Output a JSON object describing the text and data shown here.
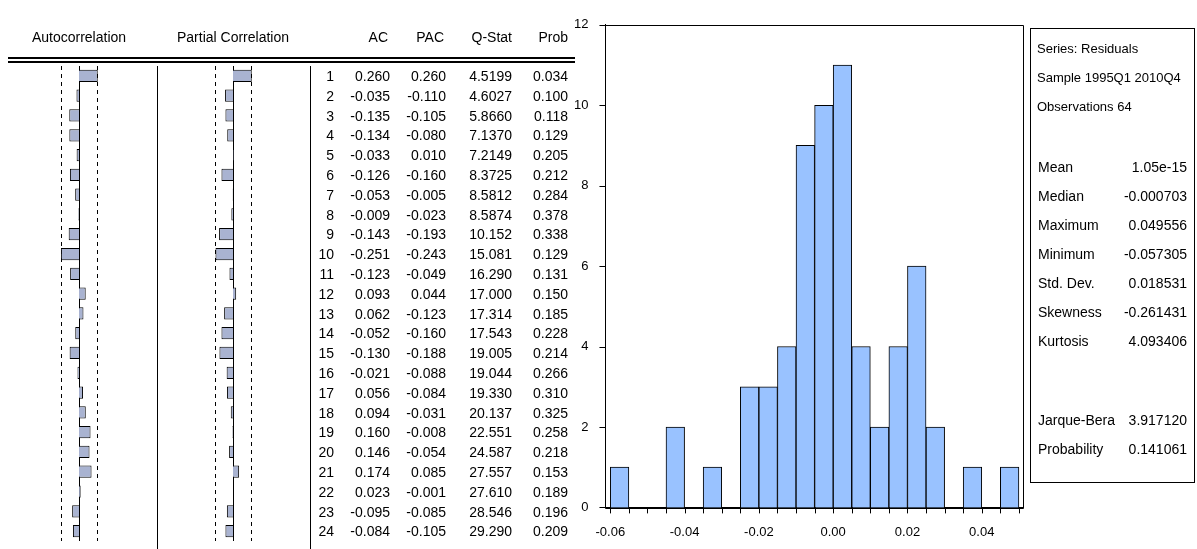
{
  "chart_data": [
    {
      "type": "bar",
      "orientation": "horizontal",
      "title": "Autocorrelation",
      "categories": [
        "1",
        "2",
        "3",
        "4",
        "5",
        "6",
        "7",
        "8",
        "9",
        "10",
        "11",
        "12",
        "13",
        "14",
        "15",
        "16",
        "17",
        "18",
        "19",
        "20",
        "21",
        "22",
        "23",
        "24"
      ],
      "series": [
        {
          "name": "AC",
          "color": "#a9b3d1",
          "values": [
            0.26,
            -0.035,
            -0.135,
            -0.134,
            -0.033,
            -0.126,
            -0.053,
            -0.009,
            -0.143,
            -0.251,
            -0.123,
            0.093,
            0.062,
            -0.052,
            -0.13,
            -0.021,
            0.056,
            0.094,
            0.16,
            0.146,
            0.174,
            0.023,
            -0.095,
            -0.084
          ],
          "value_labels": [
            "0.260",
            "-0.035",
            "-0.135",
            "-0.134",
            "-0.033",
            "-0.126",
            "-0.053",
            "-0.009",
            "-0.143",
            "-0.251",
            "-0.123",
            "0.093",
            "0.062",
            "-0.052",
            "-0.130",
            "-0.021",
            "0.056",
            "0.094",
            "0.160",
            "0.146",
            "0.174",
            "0.023",
            "-0.095",
            "-0.084"
          ]
        }
      ],
      "tick_labels": false,
      "legend": false,
      "grid": false,
      "ref_lines": [
        {
          "axis": "x",
          "value": -0.25,
          "line_style": "dashed",
          "color": "#000000"
        },
        {
          "axis": "x",
          "value": 0.25,
          "line_style": "dashed",
          "color": "#000000"
        }
      ]
    },
    {
      "type": "bar",
      "orientation": "horizontal",
      "title": "Partial Correlation",
      "categories": [
        null,
        null,
        null,
        null,
        null,
        null,
        null,
        null,
        null,
        null,
        null,
        null,
        null,
        null,
        null,
        null,
        null,
        null,
        null,
        null,
        null,
        null,
        null,
        null
      ],
      "series": [
        {
          "name": "PAC",
          "color": "#a9b3d1",
          "values": [
            0.26,
            -0.11,
            -0.105,
            -0.08,
            0.01,
            -0.16,
            -0.005,
            -0.023,
            -0.193,
            -0.243,
            -0.049,
            0.044,
            -0.123,
            -0.16,
            -0.188,
            -0.088,
            -0.084,
            -0.031,
            -0.008,
            -0.054,
            0.085,
            -0.001,
            -0.085,
            -0.105
          ],
          "value_labels": [
            "0.260",
            "-0.110",
            "-0.105",
            "-0.080",
            "0.010",
            "-0.160",
            "-0.005",
            "-0.023",
            "-0.193",
            "-0.243",
            "-0.049",
            "0.044",
            "-0.123",
            "-0.160",
            "-0.188",
            "-0.088",
            "-0.084",
            "-0.031",
            "-0.008",
            "-0.054",
            "0.085",
            "-0.001",
            "-0.085",
            "-0.105"
          ]
        }
      ],
      "tick_labels": false,
      "legend": false,
      "grid": false,
      "ref_lines": [
        {
          "axis": "x",
          "value": -0.25,
          "line_style": "dashed",
          "color": "#000000"
        },
        {
          "axis": "x",
          "value": 0.25,
          "line_style": "dashed",
          "color": "#000000"
        }
      ]
    },
    {
      "type": "other",
      "title": "Q-Stat",
      "annotations": [
        "4.5199",
        "4.6027",
        "5.8660",
        "7.1370",
        "7.2149",
        "8.3725",
        "8.5812",
        "8.5874",
        "10.152",
        "15.081",
        "16.290",
        "17.000",
        "17.314",
        "17.543",
        "19.005",
        "19.044",
        "19.330",
        "20.137",
        "22.551",
        "24.587",
        "27.557",
        "27.610",
        "28.546",
        "29.290"
      ]
    },
    {
      "type": "other",
      "title": "Prob",
      "annotations": [
        "0.034",
        "0.100",
        "0.118",
        "0.129",
        "0.205",
        "0.212",
        "0.284",
        "0.378",
        "0.338",
        "0.129",
        "0.131",
        "0.150",
        "0.185",
        "0.228",
        "0.214",
        "0.266",
        "0.310",
        "0.325",
        "0.258",
        "0.218",
        "0.153",
        "0.189",
        "0.196",
        "0.209"
      ]
    },
    {
      "type": "histogram",
      "bins": [
        -0.06,
        -0.055,
        -0.05,
        -0.045,
        -0.04,
        -0.035,
        -0.03,
        -0.025,
        -0.02,
        -0.015,
        -0.01,
        -0.005,
        0,
        0.005,
        0.01,
        0.015,
        0.02,
        0.025,
        0.03,
        0.035,
        0.04,
        0.045,
        0.05
      ],
      "values": [
        1,
        0,
        0,
        2,
        0,
        1,
        0,
        3,
        3,
        4,
        9,
        10,
        11,
        4,
        2,
        4,
        6,
        2,
        0,
        1,
        0,
        1
      ],
      "color": "#99c2ff",
      "xlim": [
        -0.0613,
        0.0511
      ],
      "ylim": [
        0,
        12
      ],
      "yticks": [
        0,
        2,
        4,
        6,
        8,
        10,
        12
      ],
      "xticks": [
        {
          "value": -0.06,
          "label": "-0.06"
        },
        {
          "value": -0.055,
          "label": null
        },
        {
          "value": -0.05,
          "label": null
        },
        {
          "value": -0.045,
          "label": null
        },
        {
          "value": -0.04,
          "label": "-0.04"
        },
        {
          "value": -0.035,
          "label": null
        },
        {
          "value": -0.03,
          "label": null
        },
        {
          "value": -0.025,
          "label": null
        },
        {
          "value": -0.02,
          "label": "-0.02"
        },
        {
          "value": -0.015,
          "label": null
        },
        {
          "value": -0.01,
          "label": null
        },
        {
          "value": -0.005,
          "label": null
        },
        {
          "value": 0,
          "label": "0.00"
        },
        {
          "value": 0.005,
          "label": null
        },
        {
          "value": 0.01,
          "label": null
        },
        {
          "value": 0.015,
          "label": null
        },
        {
          "value": 0.02,
          "label": "0.02"
        },
        {
          "value": 0.025,
          "label": null
        },
        {
          "value": 0.03,
          "label": null
        },
        {
          "value": 0.035,
          "label": null
        },
        {
          "value": 0.04,
          "label": "0.04"
        },
        {
          "value": 0.045,
          "label": null
        },
        {
          "value": 0.05,
          "label": null
        }
      ],
      "grid": false,
      "legend": false
    },
    {
      "type": "other",
      "annotations": [
        "Series: Residuals",
        "Sample 1995Q1 2010Q4",
        "Observations 64"
      ],
      "categories": [
        "Mean",
        "Median",
        "Maximum",
        "Minimum",
        "Std. Dev.",
        "Skewness",
        "Kurtosis",
        "Jarque-Bera",
        "Probability"
      ],
      "value_labels": [
        "1.05e-15",
        "-0.000703",
        "0.049556",
        "-0.057305",
        "0.018531",
        "-0.261431",
        "4.093406",
        "3.917120",
        "0.141061"
      ]
    }
  ]
}
